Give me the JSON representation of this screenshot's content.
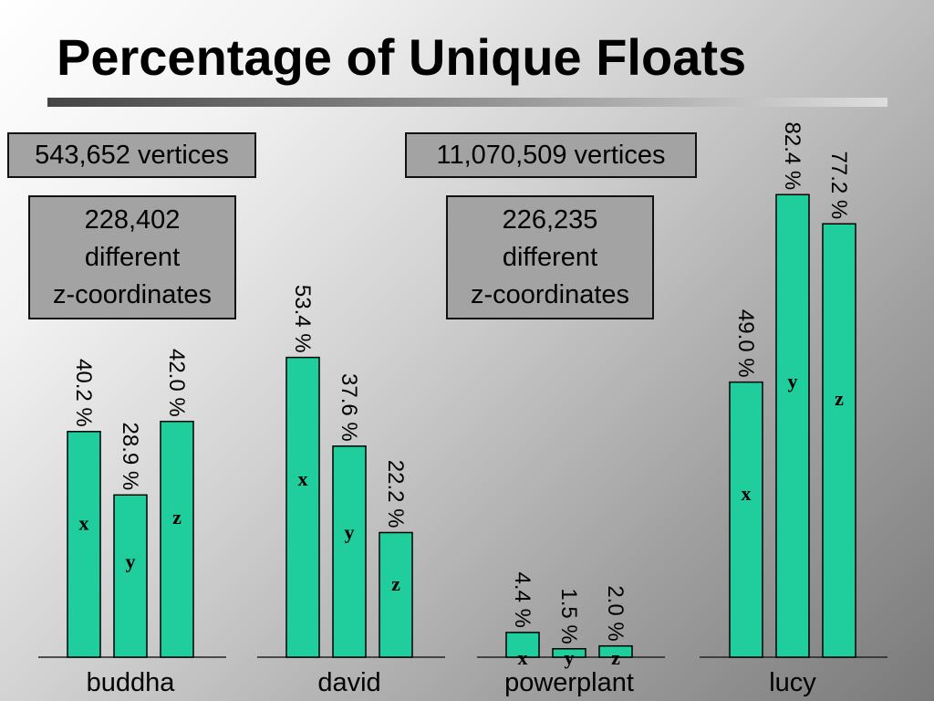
{
  "slide": {
    "title": "Percentage of Unique Floats",
    "vertices_box_1": "543,652 vertices",
    "vertices_box_2": "11,070,509 vertices",
    "different_box_1": {
      "line1": "228,402",
      "line2": "different",
      "line3": "z-coordinates"
    },
    "different_box_2": {
      "line1": "226,235",
      "line2": "different",
      "line3": "z-coordinates"
    }
  },
  "chart_data": {
    "type": "bar",
    "title": "Percentage of Unique Floats",
    "categories": [
      "buddha",
      "david",
      "powerplant",
      "lucy"
    ],
    "series": [
      {
        "name": "x",
        "values": [
          40.2,
          53.4,
          4.4,
          49.0
        ]
      },
      {
        "name": "y",
        "values": [
          28.9,
          37.6,
          1.5,
          82.4
        ]
      },
      {
        "name": "z",
        "values": [
          42.0,
          22.2,
          2.0,
          77.2
        ]
      }
    ],
    "value_labels": [
      [
        "40.2 %",
        "28.9 %",
        "42.0 %"
      ],
      [
        "53.4 %",
        "37.6 %",
        "22.2 %"
      ],
      [
        "4.4 %",
        "1.5 %",
        "2.0 %"
      ],
      [
        "49.0 %",
        "82.4 %",
        "77.2 %"
      ]
    ],
    "ylim": [
      0,
      100
    ],
    "bar_color": "#1fce9c",
    "legend": "none",
    "grid": false
  }
}
